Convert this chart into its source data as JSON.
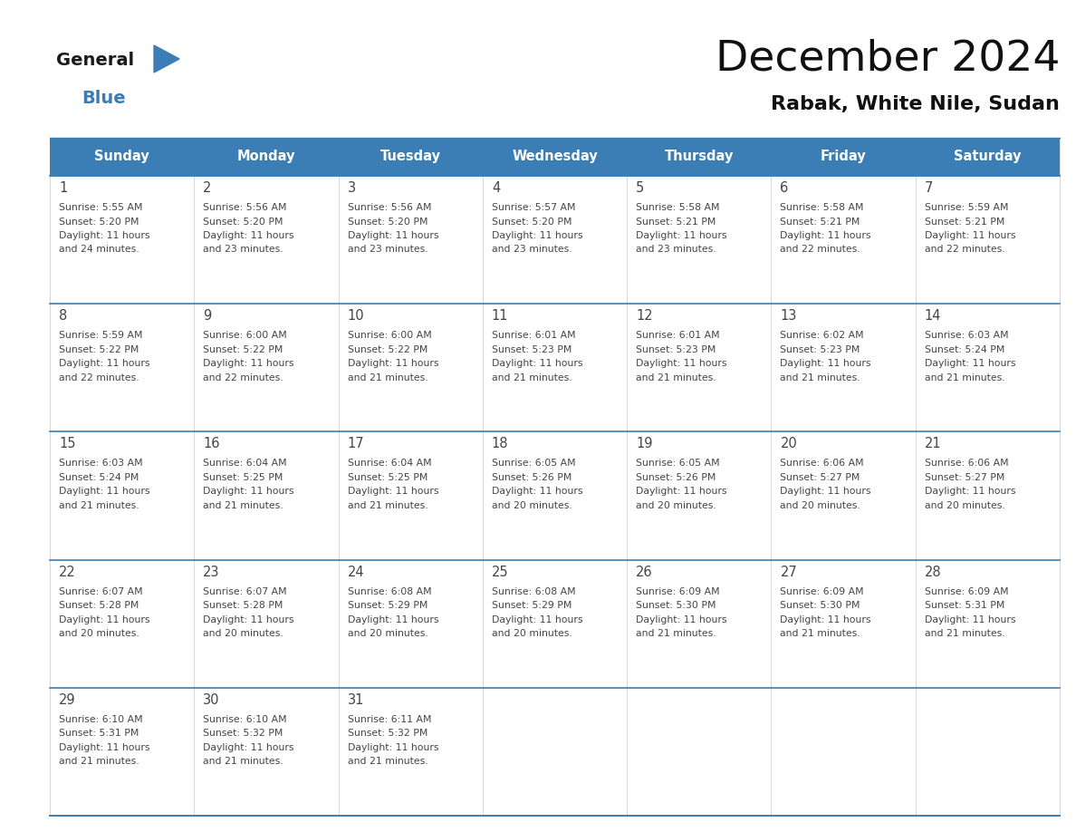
{
  "title": "December 2024",
  "subtitle": "Rabak, White Nile, Sudan",
  "header_color": "#3a7eb5",
  "header_text_color": "#ffffff",
  "cell_bg_color": "#ffffff",
  "border_color": "#3a7eb5",
  "text_color": "#444444",
  "days_of_week": [
    "Sunday",
    "Monday",
    "Tuesday",
    "Wednesday",
    "Thursday",
    "Friday",
    "Saturday"
  ],
  "weeks": [
    [
      {
        "day": 1,
        "sunrise": "5:55 AM",
        "sunset": "5:20 PM",
        "daylight_hours": 11,
        "daylight_minutes": 24
      },
      {
        "day": 2,
        "sunrise": "5:56 AM",
        "sunset": "5:20 PM",
        "daylight_hours": 11,
        "daylight_minutes": 23
      },
      {
        "day": 3,
        "sunrise": "5:56 AM",
        "sunset": "5:20 PM",
        "daylight_hours": 11,
        "daylight_minutes": 23
      },
      {
        "day": 4,
        "sunrise": "5:57 AM",
        "sunset": "5:20 PM",
        "daylight_hours": 11,
        "daylight_minutes": 23
      },
      {
        "day": 5,
        "sunrise": "5:58 AM",
        "sunset": "5:21 PM",
        "daylight_hours": 11,
        "daylight_minutes": 23
      },
      {
        "day": 6,
        "sunrise": "5:58 AM",
        "sunset": "5:21 PM",
        "daylight_hours": 11,
        "daylight_minutes": 22
      },
      {
        "day": 7,
        "sunrise": "5:59 AM",
        "sunset": "5:21 PM",
        "daylight_hours": 11,
        "daylight_minutes": 22
      }
    ],
    [
      {
        "day": 8,
        "sunrise": "5:59 AM",
        "sunset": "5:22 PM",
        "daylight_hours": 11,
        "daylight_minutes": 22
      },
      {
        "day": 9,
        "sunrise": "6:00 AM",
        "sunset": "5:22 PM",
        "daylight_hours": 11,
        "daylight_minutes": 22
      },
      {
        "day": 10,
        "sunrise": "6:00 AM",
        "sunset": "5:22 PM",
        "daylight_hours": 11,
        "daylight_minutes": 21
      },
      {
        "day": 11,
        "sunrise": "6:01 AM",
        "sunset": "5:23 PM",
        "daylight_hours": 11,
        "daylight_minutes": 21
      },
      {
        "day": 12,
        "sunrise": "6:01 AM",
        "sunset": "5:23 PM",
        "daylight_hours": 11,
        "daylight_minutes": 21
      },
      {
        "day": 13,
        "sunrise": "6:02 AM",
        "sunset": "5:23 PM",
        "daylight_hours": 11,
        "daylight_minutes": 21
      },
      {
        "day": 14,
        "sunrise": "6:03 AM",
        "sunset": "5:24 PM",
        "daylight_hours": 11,
        "daylight_minutes": 21
      }
    ],
    [
      {
        "day": 15,
        "sunrise": "6:03 AM",
        "sunset": "5:24 PM",
        "daylight_hours": 11,
        "daylight_minutes": 21
      },
      {
        "day": 16,
        "sunrise": "6:04 AM",
        "sunset": "5:25 PM",
        "daylight_hours": 11,
        "daylight_minutes": 21
      },
      {
        "day": 17,
        "sunrise": "6:04 AM",
        "sunset": "5:25 PM",
        "daylight_hours": 11,
        "daylight_minutes": 21
      },
      {
        "day": 18,
        "sunrise": "6:05 AM",
        "sunset": "5:26 PM",
        "daylight_hours": 11,
        "daylight_minutes": 20
      },
      {
        "day": 19,
        "sunrise": "6:05 AM",
        "sunset": "5:26 PM",
        "daylight_hours": 11,
        "daylight_minutes": 20
      },
      {
        "day": 20,
        "sunrise": "6:06 AM",
        "sunset": "5:27 PM",
        "daylight_hours": 11,
        "daylight_minutes": 20
      },
      {
        "day": 21,
        "sunrise": "6:06 AM",
        "sunset": "5:27 PM",
        "daylight_hours": 11,
        "daylight_minutes": 20
      }
    ],
    [
      {
        "day": 22,
        "sunrise": "6:07 AM",
        "sunset": "5:28 PM",
        "daylight_hours": 11,
        "daylight_minutes": 20
      },
      {
        "day": 23,
        "sunrise": "6:07 AM",
        "sunset": "5:28 PM",
        "daylight_hours": 11,
        "daylight_minutes": 20
      },
      {
        "day": 24,
        "sunrise": "6:08 AM",
        "sunset": "5:29 PM",
        "daylight_hours": 11,
        "daylight_minutes": 20
      },
      {
        "day": 25,
        "sunrise": "6:08 AM",
        "sunset": "5:29 PM",
        "daylight_hours": 11,
        "daylight_minutes": 20
      },
      {
        "day": 26,
        "sunrise": "6:09 AM",
        "sunset": "5:30 PM",
        "daylight_hours": 11,
        "daylight_minutes": 21
      },
      {
        "day": 27,
        "sunrise": "6:09 AM",
        "sunset": "5:30 PM",
        "daylight_hours": 11,
        "daylight_minutes": 21
      },
      {
        "day": 28,
        "sunrise": "6:09 AM",
        "sunset": "5:31 PM",
        "daylight_hours": 11,
        "daylight_minutes": 21
      }
    ],
    [
      {
        "day": 29,
        "sunrise": "6:10 AM",
        "sunset": "5:31 PM",
        "daylight_hours": 11,
        "daylight_minutes": 21
      },
      {
        "day": 30,
        "sunrise": "6:10 AM",
        "sunset": "5:32 PM",
        "daylight_hours": 11,
        "daylight_minutes": 21
      },
      {
        "day": 31,
        "sunrise": "6:11 AM",
        "sunset": "5:32 PM",
        "daylight_hours": 11,
        "daylight_minutes": 21
      },
      null,
      null,
      null,
      null
    ]
  ],
  "logo_color_general": "#1a1a1a",
  "logo_color_blue": "#3a7eb5",
  "logo_triangle_color": "#3a7eb5",
  "figwidth": 11.88,
  "figheight": 9.18,
  "dpi": 100
}
